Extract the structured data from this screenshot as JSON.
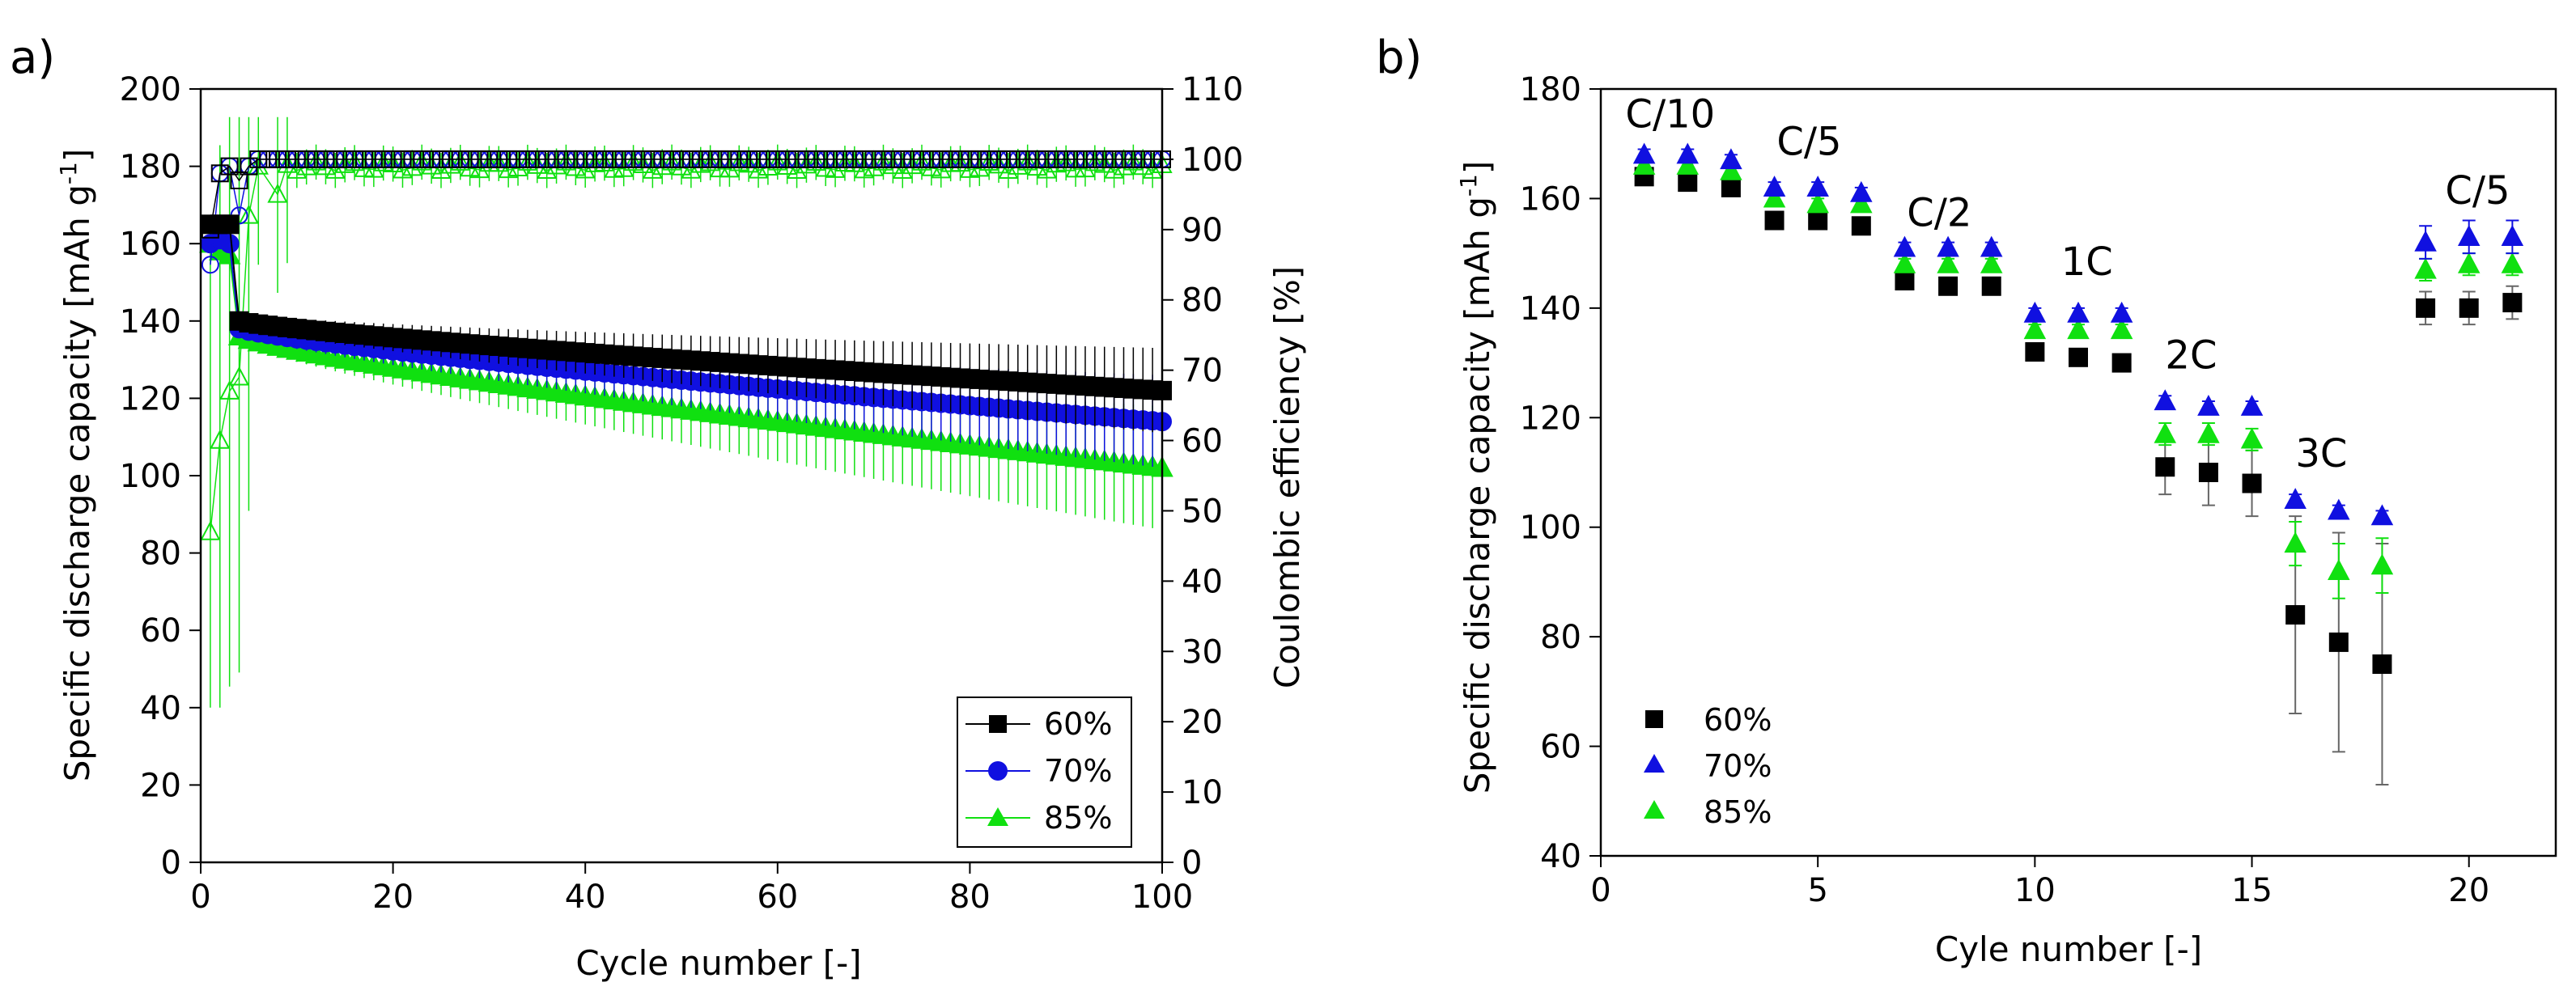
{
  "chart_data": [
    {
      "panel": "a)",
      "type": "scatter",
      "title": "",
      "xlabel": "Cycle number [-]",
      "ylabel": "Specific discharge capacity [mAh g",
      "ylabel_sup": "-1",
      "ylabel_end": "]",
      "y2label": "Coulombic efficiency [%]",
      "xlim": [
        0,
        100
      ],
      "ylim": [
        0,
        200
      ],
      "y2lim": [
        0,
        110
      ],
      "x_ticks": [
        "0",
        "20",
        "40",
        "60",
        "80",
        "100"
      ],
      "y_ticks": [
        "0",
        "20",
        "40",
        "60",
        "80",
        "100",
        "120",
        "140",
        "160",
        "180",
        "200"
      ],
      "y2_ticks": [
        "0",
        "10",
        "20",
        "30",
        "40",
        "50",
        "60",
        "70",
        "80",
        "90",
        "100",
        "110"
      ],
      "legend_position": "bottom-right",
      "series": [
        {
          "name": "60%",
          "color": "#000000",
          "marker": "square",
          "capacity_start": [
            [
              1,
              165
            ],
            [
              2,
              165
            ],
            [
              3,
              165
            ],
            [
              4,
              140
            ]
          ],
          "capacity_end": 122,
          "capacity_err_end": 9,
          "ce_values": [
            [
              1,
              90
            ],
            [
              2,
              98
            ],
            [
              3,
              99
            ],
            [
              4,
              97
            ],
            [
              5,
              99
            ],
            [
              6,
              100
            ]
          ],
          "ce_plateau": 100
        },
        {
          "name": "70%",
          "color": "#1010e0",
          "marker": "circle",
          "capacity_start": [
            [
              1,
              160
            ],
            [
              2,
              161
            ],
            [
              3,
              160
            ],
            [
              4,
              138
            ]
          ],
          "capacity_end": 114,
          "capacity_err_end": 10,
          "ce_values": [
            [
              1,
              85
            ],
            [
              2,
              98
            ],
            [
              3,
              99
            ],
            [
              4,
              92
            ],
            [
              5,
              99
            ],
            [
              6,
              100
            ]
          ],
          "ce_plateau": 100
        },
        {
          "name": "85%",
          "color": "#10e010",
          "marker": "triangle",
          "capacity_start": [
            [
              1,
              160
            ],
            [
              2,
              158
            ],
            [
              3,
              157
            ],
            [
              4,
              136
            ]
          ],
          "capacity_end": 102,
          "capacity_err_end": 14,
          "ce_values": [
            [
              1,
              47
            ],
            [
              2,
              60
            ],
            [
              3,
              67
            ],
            [
              4,
              69
            ],
            [
              5,
              92
            ],
            [
              6,
              99
            ],
            [
              8,
              95
            ]
          ],
          "ce_plateau": 99
        }
      ]
    },
    {
      "panel": "b)",
      "type": "scatter",
      "title": "",
      "xlabel": "Cyle number [-]",
      "ylabel": "Specific discharge capacity [mAh g",
      "ylabel_sup": "-1",
      "ylabel_end": "]",
      "xlim": [
        0,
        22
      ],
      "ylim": [
        40,
        180
      ],
      "x_ticks": [
        "0",
        "5",
        "10",
        "15",
        "20"
      ],
      "y_ticks": [
        "40",
        "60",
        "80",
        "100",
        "120",
        "140",
        "160",
        "180"
      ],
      "legend_position": "bottom-left",
      "annotations": [
        {
          "text": "C/10",
          "x": 1.6,
          "y": 173
        },
        {
          "text": "C/5",
          "x": 4.8,
          "y": 168
        },
        {
          "text": "C/2",
          "x": 7.8,
          "y": 155
        },
        {
          "text": "1C",
          "x": 11.2,
          "y": 146
        },
        {
          "text": "2C",
          "x": 13.6,
          "y": 129
        },
        {
          "text": "3C",
          "x": 16.6,
          "y": 111
        },
        {
          "text": "C/5",
          "x": 20.2,
          "y": 159
        }
      ],
      "x": [
        1,
        2,
        3,
        4,
        5,
        6,
        7,
        8,
        9,
        10,
        11,
        12,
        13,
        14,
        15,
        16,
        17,
        18,
        19,
        20,
        21
      ],
      "series": [
        {
          "name": "60%",
          "color": "#000000",
          "marker": "square",
          "values": [
            164,
            163,
            162,
            156,
            156,
            155,
            145,
            144,
            144,
            132,
            131,
            130,
            111,
            110,
            108,
            84,
            79,
            75,
            140,
            140,
            141
          ],
          "errors": [
            1,
            1,
            1,
            1,
            1,
            1.5,
            1,
            1,
            1,
            1,
            1,
            1,
            5,
            6,
            6,
            18,
            20,
            22,
            3,
            3,
            3
          ]
        },
        {
          "name": "70%",
          "color": "#1010e0",
          "marker": "triangle",
          "values": [
            168,
            168,
            167,
            162,
            162,
            161,
            151,
            151,
            151,
            139,
            139,
            139,
            123,
            122,
            122,
            105,
            103,
            102,
            152,
            153,
            153
          ],
          "errors": [
            1,
            1,
            1,
            1,
            1,
            1,
            1,
            1,
            1,
            1,
            1,
            1,
            1,
            1,
            1,
            1,
            1,
            1,
            3,
            3,
            3
          ]
        },
        {
          "name": "85%",
          "color": "#10e010",
          "marker": "triangle",
          "values": [
            166,
            166,
            165,
            160,
            159,
            159,
            148,
            148,
            148,
            136,
            136,
            136,
            117,
            117,
            116,
            97,
            92,
            93,
            147,
            148,
            148
          ],
          "errors": [
            1,
            1,
            1,
            1,
            1,
            1,
            1,
            1,
            1,
            1,
            1,
            1,
            2,
            2,
            2,
            4,
            5,
            5,
            2,
            2,
            2
          ]
        }
      ]
    }
  ]
}
